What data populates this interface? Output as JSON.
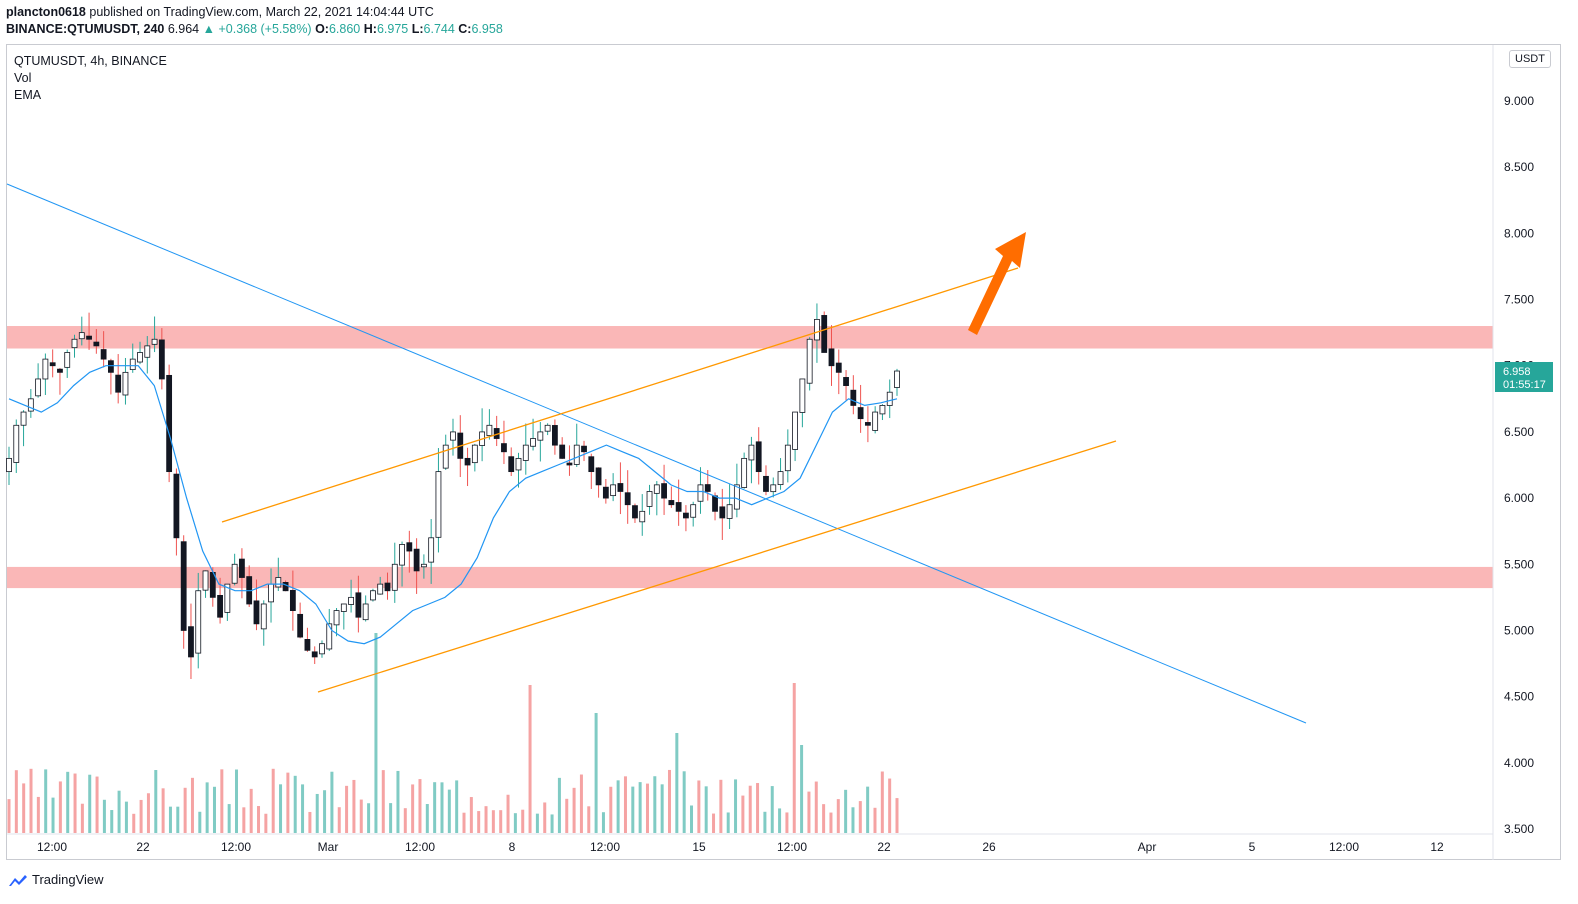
{
  "header": {
    "author": "plancton0618",
    "published_text": " published on TradingView.com, March 22, 2021 14:04:44 UTC"
  },
  "quote": {
    "symbol": "BINANCE:QTUMUSDT, 240",
    "last": "6.964",
    "change": "+0.368 (+5.58%)",
    "o_label": "O:",
    "o": "6.860",
    "h_label": "H:",
    "h": "6.975",
    "l_label": "L:",
    "l": "6.744",
    "c_label": "C:",
    "c": "6.958"
  },
  "legend": {
    "title": "QTUMUSDT, 4h, BINANCE",
    "vol": "Vol",
    "ema": "EMA"
  },
  "currency_button": "USDT",
  "price_label": {
    "value": "6.958",
    "countdown": "01:55:17"
  },
  "footer": {
    "brand": "TradingView"
  },
  "colors": {
    "up": "#26a69a",
    "down": "#ef5350",
    "candle": "#131722",
    "ema": "#2196f3",
    "trendline": "#2196f3",
    "channel": "#ff9800",
    "zone": "#f9a5a5",
    "arrow": "#ff6d00",
    "vol_up": "#80cbc4",
    "vol_down": "#f5a3a3"
  },
  "chart_data": {
    "type": "candlestick",
    "y_axis_ticks": [
      "9.000",
      "8.500",
      "8.000",
      "7.500",
      "7.000",
      "6.500",
      "6.000",
      "5.500",
      "5.000",
      "4.500",
      "4.000",
      "3.500"
    ],
    "ylim": [
      3.5,
      9.0
    ],
    "x_axis_ticks": [
      "12:00",
      "22",
      "12:00",
      "Mar",
      "12:00",
      "8",
      "12:00",
      "15",
      "12:00",
      "22",
      "26",
      "Apr",
      "5",
      "12:00",
      "12"
    ],
    "close_path": [
      6.3,
      6.55,
      6.65,
      6.75,
      6.9,
      7.05,
      7.0,
      6.95,
      7.1,
      7.2,
      7.25,
      7.2,
      7.15,
      7.05,
      6.95,
      6.8,
      6.95,
      7.05,
      7.1,
      7.15,
      7.2,
      6.9,
      6.2,
      5.7,
      5.0,
      4.8,
      5.3,
      5.45,
      5.25,
      5.1,
      5.35,
      5.5,
      5.4,
      5.2,
      5.05,
      5.2,
      5.35,
      5.4,
      5.3,
      5.15,
      4.95,
      4.85,
      4.8,
      4.9,
      5.05,
      5.15,
      5.2,
      5.25,
      5.1,
      5.2,
      5.3,
      5.35,
      5.3,
      5.5,
      5.65,
      5.6,
      5.45,
      5.5,
      5.7,
      6.2,
      6.4,
      6.5,
      6.3,
      6.25,
      6.4,
      6.5,
      6.55,
      6.45,
      6.35,
      6.2,
      6.3,
      6.4,
      6.45,
      6.5,
      6.55,
      6.4,
      6.3,
      6.25,
      6.4,
      6.35,
      6.2,
      6.1,
      6.0,
      6.1,
      6.05,
      5.95,
      5.85,
      5.9,
      6.05,
      6.1,
      6.0,
      5.95,
      5.9,
      5.85,
      5.95,
      6.1,
      6.05,
      5.9,
      5.85,
      5.95,
      6.1,
      6.3,
      6.4,
      6.2,
      6.05,
      6.1,
      6.2,
      6.4,
      6.65,
      6.9,
      7.2,
      7.35,
      7.1,
      7.0,
      6.95,
      6.85,
      6.7,
      6.6,
      6.55,
      6.65,
      6.7,
      6.8,
      6.96
    ],
    "ema_path": [
      6.75,
      6.7,
      6.65,
      6.72,
      6.85,
      6.95,
      7.0,
      7.0,
      7.0,
      6.85,
      6.45,
      6.0,
      5.6,
      5.35,
      5.3,
      5.3,
      5.35,
      5.35,
      5.3,
      5.2,
      5.0,
      4.92,
      4.9,
      4.95,
      5.05,
      5.15,
      5.2,
      5.25,
      5.35,
      5.55,
      5.85,
      6.05,
      6.15,
      6.2,
      6.25,
      6.3,
      6.35,
      6.4,
      6.35,
      6.3,
      6.2,
      6.1,
      6.05,
      6.05,
      6.0,
      6.0,
      5.95,
      6.0,
      6.05,
      6.15,
      6.4,
      6.65,
      6.75,
      6.7,
      6.72,
      6.75
    ],
    "volume_bars": 122,
    "levels": {
      "upper_zone": [
        7.13,
        7.3
      ],
      "lower_zone": [
        5.32,
        5.48
      ]
    }
  }
}
